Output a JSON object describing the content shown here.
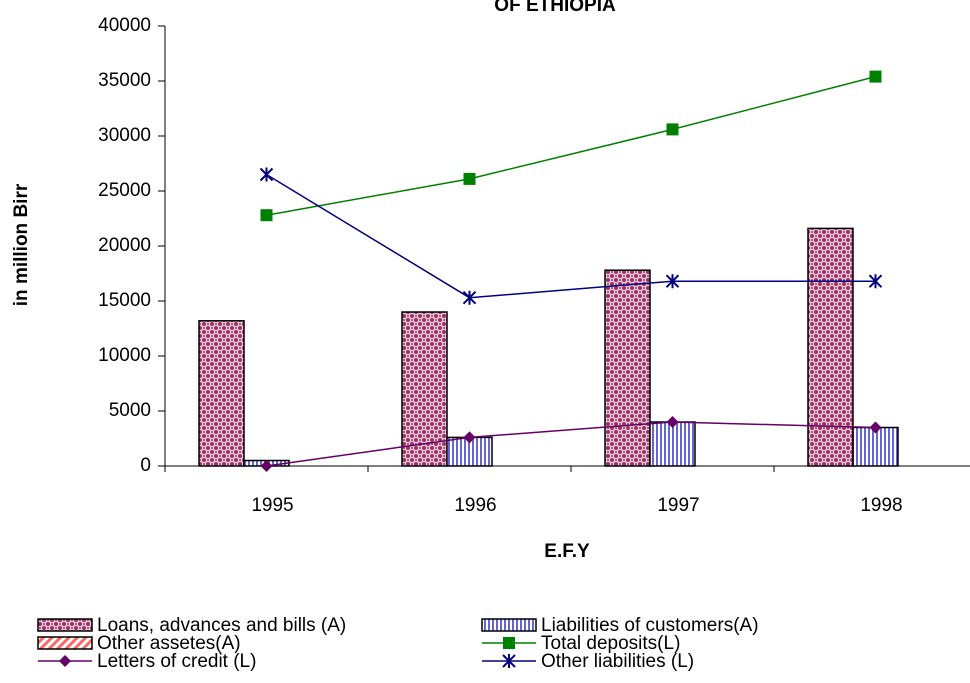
{
  "chart_data": {
    "type": "bar_line",
    "title": "OF ETHIOPIA",
    "x_label": "E.F.Y",
    "y_label": "in million Birr",
    "categories": [
      "1995",
      "1996",
      "1997",
      "1998"
    ],
    "ylim": [
      0,
      40000
    ],
    "yticks": [
      0,
      5000,
      10000,
      15000,
      20000,
      25000,
      30000,
      35000,
      40000
    ],
    "series": [
      {
        "name": "Loans, advances and bills (A)",
        "type": "bar",
        "pattern": "dots",
        "color": "#993366",
        "values": [
          13200,
          14000,
          17800,
          21600
        ]
      },
      {
        "name": "Liabilities of customers(A)",
        "type": "bar",
        "pattern": "vstripes",
        "color": "#6666cc",
        "values": [
          500,
          2600,
          4000,
          3500
        ]
      },
      {
        "name": "Other assetes(A)",
        "type": "bar",
        "pattern": "dstripes",
        "color": "#ff6666",
        "values": [
          0,
          0,
          0,
          0
        ]
      },
      {
        "name": "Total deposits(L)",
        "type": "line",
        "marker": "square",
        "color": "#008000",
        "values": [
          22800,
          26100,
          30600,
          35400
        ]
      },
      {
        "name": "Letters of credit (L)",
        "type": "line",
        "marker": "diamond",
        "color": "#660066",
        "values": [
          0,
          2600,
          4000,
          3500
        ]
      },
      {
        "name": "Other liabilities (L)",
        "type": "line",
        "marker": "star",
        "color": "#000080",
        "values": [
          26500,
          15300,
          16800,
          16800
        ]
      }
    ]
  }
}
